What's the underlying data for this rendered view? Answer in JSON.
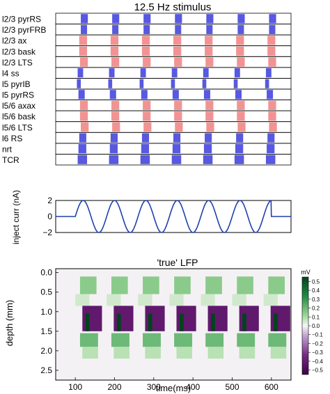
{
  "chart_data": [
    {
      "type": "raster",
      "title": "12.5 Hz stimulus",
      "rows": [
        "l2/3 pyrRS",
        "l2/3 pyrFRB",
        "l2/3 ax",
        "l2/3 bask",
        "l2/3 LTS",
        "l4 ss",
        "l5 pyrIB",
        "l5 pyrRS",
        "l5/6 axax",
        "l5/6 bask",
        "l5/6 LTS",
        "l6 RS",
        "nrt",
        "TCR"
      ],
      "row_colors": [
        "#3b3bdc",
        "#3b3bdc",
        "#f08080",
        "#f08080",
        "#f08080",
        "#3b3bdc",
        "#3b3bdc",
        "#3b3bdc",
        "#f08080",
        "#f08080",
        "#f08080",
        "#3b3bdc",
        "#3b3bdc",
        "#3b3bdc"
      ],
      "stimulus_onsets_ms": [
        100,
        180,
        260,
        340,
        420,
        500,
        580
      ],
      "xlim": [
        50,
        650
      ]
    },
    {
      "type": "line",
      "xlabel": "",
      "ylabel": "inject curr (nA)",
      "xlim": [
        50,
        650
      ],
      "ylim": [
        -2,
        2
      ],
      "yticks": [
        -2,
        0,
        2
      ],
      "series": [
        {
          "color": "#1f3fb0",
          "x": [
            50,
            100,
            100,
            110,
            120,
            130,
            140,
            150,
            160,
            170,
            180,
            190,
            200,
            210,
            220,
            230,
            240,
            250,
            260,
            270,
            280,
            290,
            300,
            310,
            320,
            330,
            340,
            350,
            360,
            370,
            380,
            390,
            400,
            410,
            420,
            430,
            440,
            450,
            460,
            470,
            480,
            490,
            500,
            510,
            520,
            530,
            540,
            550,
            560,
            570,
            580,
            590,
            600,
            610,
            620,
            630,
            640,
            650
          ],
          "y": [
            0,
            0,
            0,
            1.41,
            2,
            1.41,
            0,
            -1.41,
            -2,
            -1.41,
            0,
            1.41,
            2,
            1.41,
            0,
            -1.41,
            -2,
            -1.41,
            0,
            1.41,
            2,
            1.41,
            0,
            -1.41,
            -2,
            -1.41,
            0,
            1.41,
            2,
            1.41,
            0,
            -1.41,
            -2,
            -1.41,
            0,
            1.41,
            2,
            1.41,
            0,
            -1.41,
            -2,
            -1.41,
            0,
            1.41,
            2,
            1.41,
            0,
            -1.41,
            -2,
            -1.41,
            0,
            1.41,
            2,
            0,
            0,
            0,
            0,
            0
          ]
        }
      ]
    },
    {
      "type": "heatmap",
      "title": "'true' LFP",
      "xlabel": "time(ms)",
      "ylabel": "depth (mm)",
      "xlim": [
        50,
        650
      ],
      "ylim": [
        2.75,
        -0.1
      ],
      "xticks": [
        100,
        200,
        300,
        400,
        500,
        600
      ],
      "yticks": [
        0.0,
        0.5,
        1.0,
        1.5,
        2.0,
        2.5
      ],
      "colorbar": {
        "label": "mV",
        "min": -0.55,
        "max": 0.55,
        "ticks": [
          0.5,
          0.4,
          0.3,
          0.2,
          0.1,
          0.0,
          -0.1,
          -0.2,
          -0.3,
          -0.4,
          -0.5
        ],
        "tick_labels": [
          "0.5",
          "0.4",
          "0.3",
          "0.2",
          "0.1",
          "0.0",
          "-0.1",
          "-0.2",
          "-0.3",
          "-0.4",
          "-0.5"
        ]
      },
      "event_onsets_ms": [
        100,
        180,
        260,
        340,
        420,
        500,
        580
      ],
      "bands": [
        {
          "depth": [
            0.1,
            0.55
          ],
          "value": 0.15
        },
        {
          "depth": [
            0.55,
            0.85
          ],
          "value": 0.05
        },
        {
          "depth": [
            0.85,
            1.5
          ],
          "value": -0.42
        },
        {
          "depth": [
            1.05,
            1.5
          ],
          "value": 0.55
        },
        {
          "depth": [
            1.55,
            1.9
          ],
          "value": 0.2
        },
        {
          "depth": [
            1.9,
            2.2
          ],
          "value": 0.08
        }
      ]
    }
  ]
}
